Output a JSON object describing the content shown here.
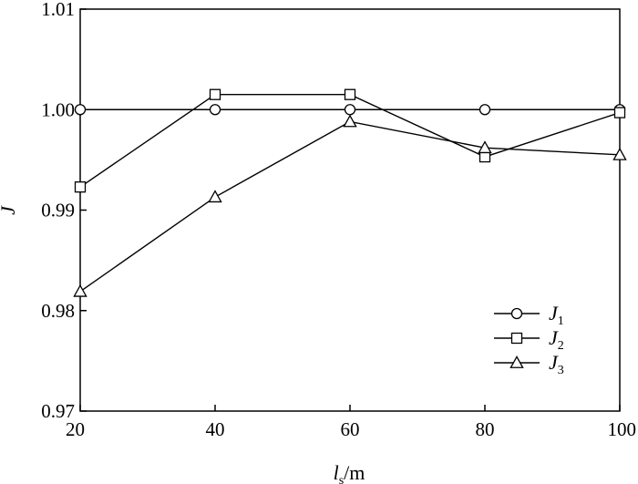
{
  "chart_data": {
    "type": "line",
    "x": [
      20,
      40,
      60,
      80,
      100
    ],
    "xlim": [
      20,
      100
    ],
    "ylim": [
      0.97,
      1.01
    ],
    "x_ticks": [
      "20",
      "40",
      "60",
      "80",
      "100"
    ],
    "y_ticks": [
      "0.97",
      "0.98",
      "0.99",
      "1.00",
      "1.01"
    ],
    "xlabel": {
      "main": "l",
      "sub": "s",
      "unit": "/m"
    },
    "ylabel": "J",
    "grid": false,
    "legend_position": "bottom-right",
    "series": [
      {
        "name": "J",
        "name_sub": "1",
        "marker": "circle",
        "values": [
          1.0,
          1.0,
          1.0,
          1.0,
          1.0
        ]
      },
      {
        "name": "J",
        "name_sub": "2",
        "marker": "square",
        "values": [
          0.9923,
          1.0015,
          1.0015,
          0.9953,
          0.9997
        ]
      },
      {
        "name": "J",
        "name_sub": "3",
        "marker": "triangle",
        "values": [
          0.9819,
          0.9913,
          0.9988,
          0.9962,
          0.9955
        ]
      }
    ]
  }
}
